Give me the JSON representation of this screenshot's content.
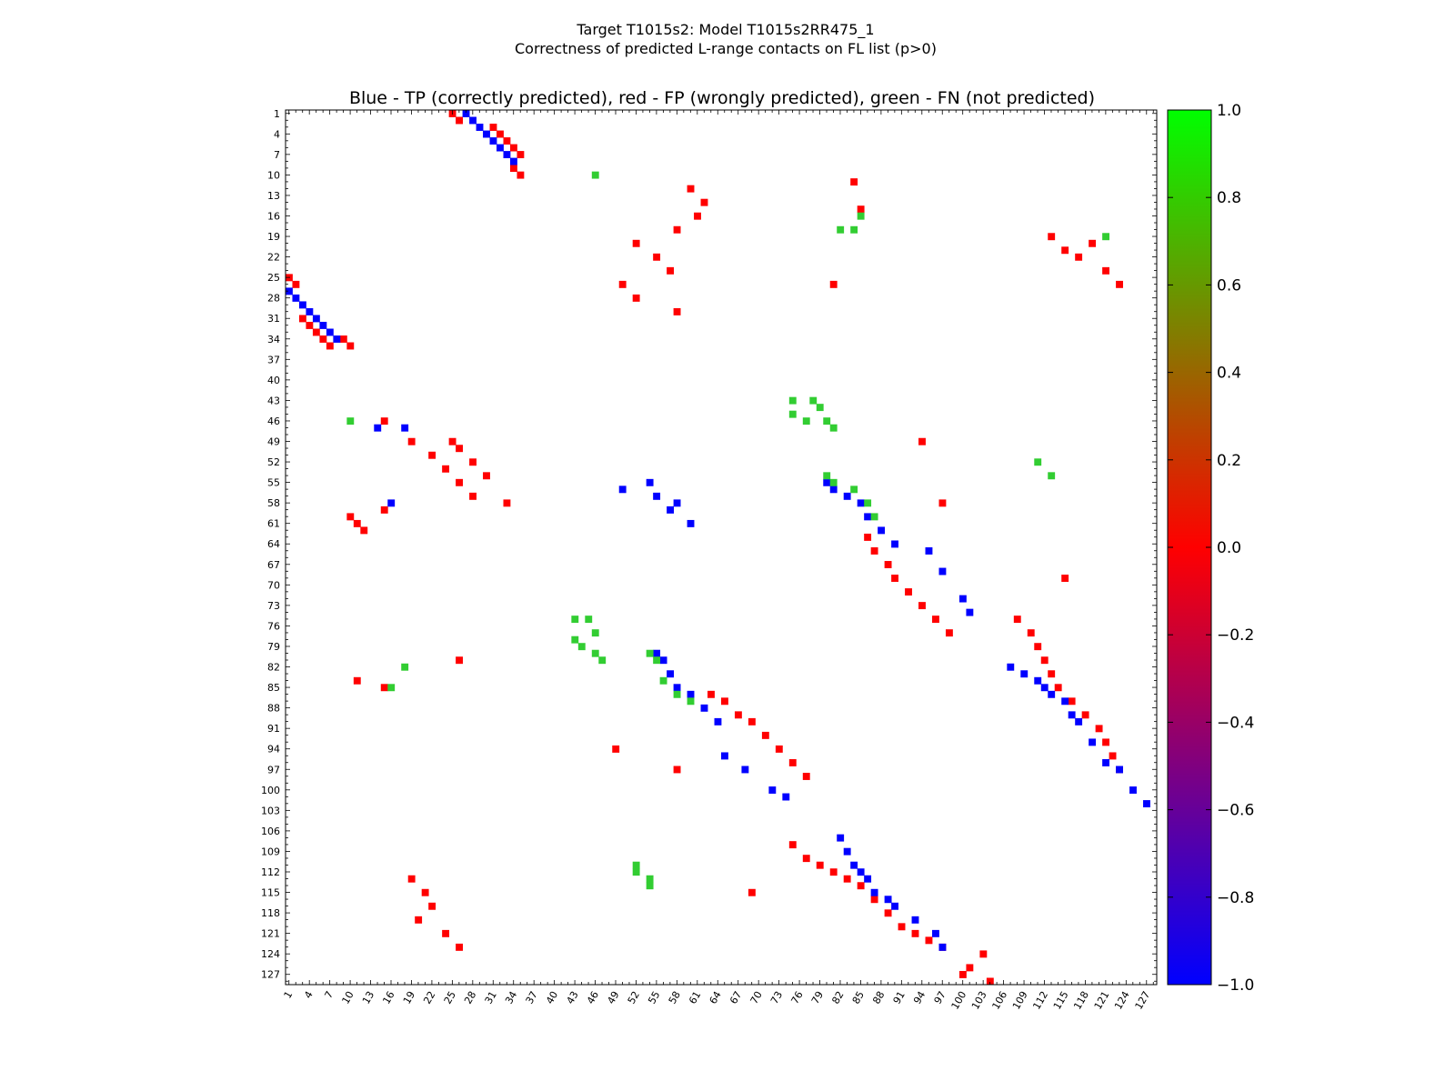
{
  "colors": {
    "tp": "#0000ff",
    "fp": "#ff0000",
    "fn": "#32cd32",
    "frame": "#000000"
  },
  "chart_data": {
    "type": "heatmap",
    "title_line1": "Target T1015s2: Model T1015s2RR475_1",
    "title_line2": "Correctness of predicted L-range contacts on FL list (p>0)",
    "subtitle": "Blue - TP (correctly predicted), red - FP (wrongly predicted), green - FN (not predicted)",
    "xlim": [
      1,
      128
    ],
    "ylim": [
      1,
      128
    ],
    "ticks": [
      "1",
      "4",
      "7",
      "10",
      "13",
      "16",
      "19",
      "22",
      "25",
      "28",
      "31",
      "34",
      "37",
      "40",
      "43",
      "46",
      "49",
      "52",
      "55",
      "58",
      "61",
      "64",
      "67",
      "70",
      "73",
      "76",
      "79",
      "82",
      "85",
      "88",
      "91",
      "94",
      "97",
      "100",
      "103",
      "106",
      "109",
      "112",
      "115",
      "118",
      "121",
      "124",
      "127"
    ],
    "colorbar": {
      "range": [
        -1.0,
        1.0
      ],
      "ticks": [
        "1.0",
        "0.8",
        "0.6",
        "0.4",
        "0.2",
        "0.0",
        "−0.2",
        "−0.4",
        "−0.6",
        "−0.8",
        "−1.0"
      ],
      "stops": [
        "#0000ff",
        "#ff0000",
        "#00ff00"
      ]
    },
    "categories": {
      "tp": -1,
      "fp": 0,
      "fn": 1
    },
    "cells": {
      "tp": [
        [
          27,
          1
        ],
        [
          28,
          2
        ],
        [
          29,
          3
        ],
        [
          30,
          4
        ],
        [
          31,
          5
        ],
        [
          32,
          6
        ],
        [
          33,
          7
        ],
        [
          34,
          8
        ],
        [
          1,
          27
        ],
        [
          2,
          28
        ],
        [
          3,
          29
        ],
        [
          4,
          30
        ],
        [
          5,
          31
        ],
        [
          6,
          32
        ],
        [
          7,
          33
        ],
        [
          8,
          34
        ],
        [
          47,
          14
        ],
        [
          47,
          18
        ],
        [
          58,
          16
        ],
        [
          56,
          50
        ],
        [
          58,
          58
        ],
        [
          55,
          54
        ],
        [
          57,
          55
        ],
        [
          59,
          57
        ],
        [
          61,
          60
        ],
        [
          80,
          55
        ],
        [
          81,
          56
        ],
        [
          83,
          57
        ],
        [
          85,
          58
        ],
        [
          86,
          60
        ],
        [
          88,
          62
        ],
        [
          90,
          64
        ],
        [
          95,
          65
        ],
        [
          97,
          68
        ],
        [
          100,
          72
        ],
        [
          101,
          74
        ],
        [
          55,
          80
        ],
        [
          56,
          81
        ],
        [
          57,
          83
        ],
        [
          58,
          85
        ],
        [
          60,
          86
        ],
        [
          62,
          88
        ],
        [
          64,
          90
        ],
        [
          65,
          95
        ],
        [
          68,
          97
        ],
        [
          72,
          100
        ],
        [
          74,
          101
        ],
        [
          107,
          82
        ],
        [
          109,
          83
        ],
        [
          111,
          84
        ],
        [
          112,
          85
        ],
        [
          113,
          86
        ],
        [
          115,
          87
        ],
        [
          116,
          89
        ],
        [
          117,
          90
        ],
        [
          119,
          93
        ],
        [
          121,
          96
        ],
        [
          123,
          97
        ],
        [
          82,
          107
        ],
        [
          83,
          109
        ],
        [
          84,
          111
        ],
        [
          85,
          112
        ],
        [
          86,
          113
        ],
        [
          87,
          115
        ],
        [
          89,
          116
        ],
        [
          90,
          117
        ],
        [
          93,
          119
        ],
        [
          96,
          121
        ],
        [
          97,
          123
        ],
        [
          102,
          127
        ],
        [
          100,
          125
        ]
      ],
      "fp": [
        [
          25,
          1
        ],
        [
          26,
          2
        ],
        [
          31,
          3
        ],
        [
          32,
          4
        ],
        [
          33,
          5
        ],
        [
          34,
          6
        ],
        [
          35,
          7
        ],
        [
          34,
          9
        ],
        [
          35,
          10
        ],
        [
          1,
          25
        ],
        [
          2,
          26
        ],
        [
          3,
          31
        ],
        [
          4,
          32
        ],
        [
          5,
          33
        ],
        [
          6,
          34
        ],
        [
          7,
          35
        ],
        [
          9,
          34
        ],
        [
          10,
          35
        ],
        [
          60,
          10
        ],
        [
          61,
          11
        ],
        [
          62,
          12
        ],
        [
          59,
          15
        ],
        [
          46,
          15
        ],
        [
          49,
          19
        ],
        [
          51,
          22
        ],
        [
          53,
          24
        ],
        [
          55,
          26
        ],
        [
          57,
          28
        ],
        [
          49,
          25
        ],
        [
          50,
          26
        ],
        [
          52,
          28
        ],
        [
          54,
          30
        ],
        [
          58,
          33
        ],
        [
          12,
          60
        ],
        [
          14,
          62
        ],
        [
          16,
          61
        ],
        [
          18,
          58
        ],
        [
          20,
          52
        ],
        [
          22,
          55
        ],
        [
          24,
          57
        ],
        [
          26,
          50
        ],
        [
          28,
          52
        ],
        [
          30,
          58
        ],
        [
          63,
          86
        ],
        [
          65,
          87
        ],
        [
          67,
          89
        ],
        [
          69,
          90
        ],
        [
          71,
          92
        ],
        [
          73,
          94
        ],
        [
          75,
          96
        ],
        [
          77,
          98
        ],
        [
          86,
          63
        ],
        [
          87,
          65
        ],
        [
          89,
          67
        ],
        [
          90,
          69
        ],
        [
          92,
          71
        ],
        [
          94,
          73
        ],
        [
          96,
          75
        ],
        [
          98,
          77
        ],
        [
          75,
          108
        ],
        [
          77,
          110
        ],
        [
          79,
          111
        ],
        [
          81,
          112
        ],
        [
          83,
          113
        ],
        [
          85,
          114
        ],
        [
          87,
          116
        ],
        [
          89,
          118
        ],
        [
          91,
          120
        ],
        [
          93,
          121
        ],
        [
          95,
          122
        ],
        [
          97,
          123
        ],
        [
          108,
          75
        ],
        [
          110,
          77
        ],
        [
          111,
          79
        ],
        [
          112,
          81
        ],
        [
          113,
          83
        ],
        [
          114,
          85
        ],
        [
          116,
          87
        ],
        [
          118,
          89
        ],
        [
          120,
          91
        ],
        [
          121,
          93
        ],
        [
          122,
          95
        ],
        [
          123,
          97
        ],
        [
          113,
          19
        ],
        [
          115,
          21
        ],
        [
          117,
          22
        ],
        [
          119,
          20
        ],
        [
          121,
          24
        ],
        [
          123,
          26
        ],
        [
          19,
          113
        ],
        [
          21,
          115
        ],
        [
          22,
          117
        ],
        [
          20,
          119
        ],
        [
          24,
          121
        ],
        [
          26,
          123
        ],
        [
          84,
          11
        ],
        [
          85,
          15
        ],
        [
          81,
          26
        ],
        [
          94,
          49
        ],
        [
          97,
          58
        ],
        [
          115,
          69
        ],
        [
          11,
          84
        ],
        [
          15,
          85
        ],
        [
          26,
          81
        ],
        [
          49,
          94
        ],
        [
          58,
          97
        ],
        [
          69,
          115
        ],
        [
          127,
          100
        ],
        [
          128,
          104
        ],
        [
          126,
          101
        ],
        [
          124,
          103
        ]
      ],
      "fn": [
        [
          46,
          10
        ],
        [
          85,
          16
        ],
        [
          82,
          18
        ],
        [
          111,
          52
        ],
        [
          113,
          54
        ],
        [
          10,
          46
        ],
        [
          16,
          85
        ],
        [
          18,
          82
        ],
        [
          52,
          111
        ],
        [
          54,
          113
        ],
        [
          78,
          43
        ],
        [
          79,
          44
        ],
        [
          80,
          46
        ],
        [
          81,
          47
        ],
        [
          75,
          43
        ],
        [
          75,
          45
        ],
        [
          77,
          46
        ],
        [
          43,
          78
        ],
        [
          44,
          79
        ],
        [
          46,
          80
        ],
        [
          47,
          81
        ],
        [
          43,
          75
        ],
        [
          45,
          75
        ],
        [
          46,
          77
        ],
        [
          54,
          80
        ],
        [
          56,
          84
        ],
        [
          58,
          86
        ],
        [
          60,
          87
        ],
        [
          55,
          81
        ],
        [
          80,
          54
        ],
        [
          84,
          56
        ],
        [
          86,
          58
        ],
        [
          87,
          60
        ],
        [
          81,
          55
        ],
        [
          112,
          52
        ],
        [
          114,
          54
        ],
        [
          18,
          84
        ],
        [
          19,
          121
        ]
      ]
    }
  }
}
